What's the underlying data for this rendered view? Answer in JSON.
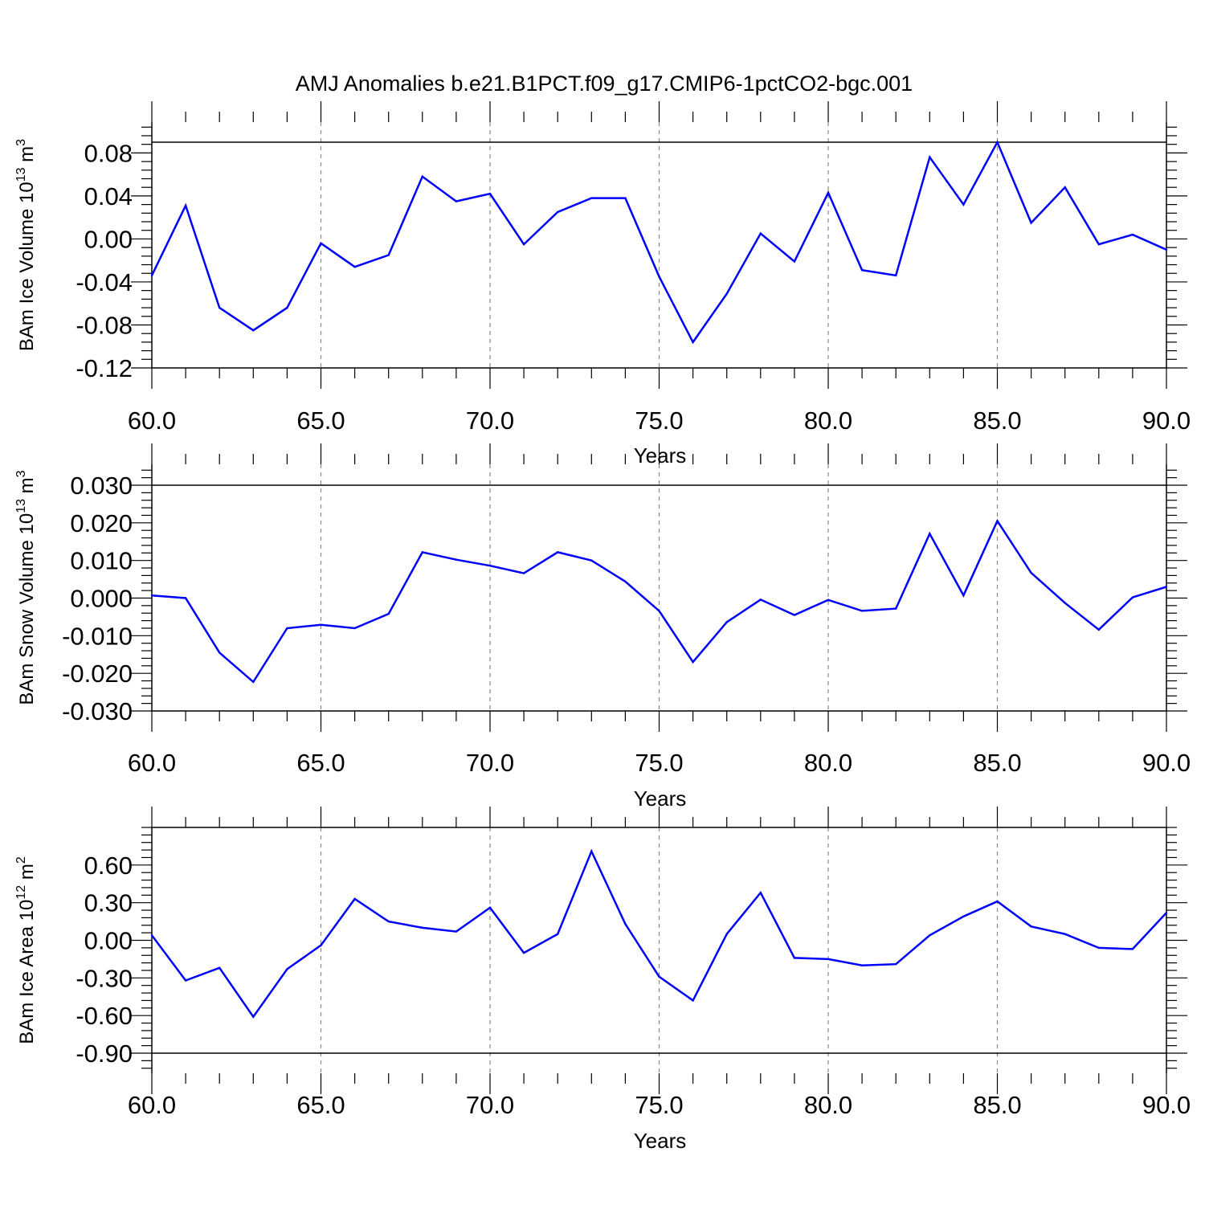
{
  "title": "AMJ Anomalies b.e21.B1PCT.f09_g17.CMIP6-1pctCO2-bgc.001",
  "colors": {
    "line": "#0000ff",
    "axes": "#000000",
    "grid": "#888888"
  },
  "chart_data": [
    {
      "type": "line",
      "ylabel": "BAm Ice Volume 10",
      "ylabel_sup": "13",
      "ylabel_unit": "m",
      "ylabel_unit_sup": "3",
      "xlabel": "Years",
      "xlim": [
        60,
        90
      ],
      "ylim": [
        -0.12,
        0.09
      ],
      "x_ticks": [
        "60.0",
        "65.0",
        "70.0",
        "75.0",
        "80.0",
        "85.0",
        "90.0"
      ],
      "y_ticks": [
        {
          "v": 0.08,
          "l": "0.08"
        },
        {
          "v": 0.04,
          "l": "0.04"
        },
        {
          "v": 0.0,
          "l": "0.00"
        },
        {
          "v": -0.04,
          "l": "-0.04"
        },
        {
          "v": -0.08,
          "l": "-0.08"
        },
        {
          "v": -0.12,
          "l": "-0.12"
        }
      ],
      "x": [
        60,
        61,
        62,
        63,
        64,
        65,
        66,
        67,
        68,
        69,
        70,
        71,
        72,
        73,
        74,
        75,
        76,
        77,
        78,
        79,
        80,
        81,
        82,
        83,
        84,
        85,
        86,
        87,
        88,
        89,
        90
      ],
      "y": [
        -0.034,
        0.031,
        -0.064,
        -0.085,
        -0.064,
        -0.004,
        -0.026,
        -0.015,
        0.058,
        0.035,
        0.042,
        -0.005,
        0.025,
        0.038,
        0.038,
        -0.035,
        -0.096,
        -0.051,
        0.005,
        -0.021,
        0.043,
        -0.029,
        -0.034,
        0.076,
        0.032,
        0.09,
        0.015,
        0.048,
        -0.005,
        0.004,
        -0.01
      ]
    },
    {
      "type": "line",
      "ylabel": "BAm Snow Volume 10",
      "ylabel_sup": "13",
      "ylabel_unit": "m",
      "ylabel_unit_sup": "3",
      "xlabel": "Years",
      "xlim": [
        60,
        90
      ],
      "ylim": [
        -0.03,
        0.03
      ],
      "x_ticks": [
        "60.0",
        "65.0",
        "70.0",
        "75.0",
        "80.0",
        "85.0",
        "90.0"
      ],
      "y_ticks": [
        {
          "v": 0.03,
          "l": "0.030"
        },
        {
          "v": 0.02,
          "l": "0.020"
        },
        {
          "v": 0.01,
          "l": "0.010"
        },
        {
          "v": 0.0,
          "l": "0.000"
        },
        {
          "v": -0.01,
          "l": "-0.010"
        },
        {
          "v": -0.02,
          "l": "-0.020"
        },
        {
          "v": -0.03,
          "l": "-0.030"
        }
      ],
      "x": [
        60,
        61,
        62,
        63,
        64,
        65,
        66,
        67,
        68,
        69,
        70,
        71,
        72,
        73,
        74,
        75,
        76,
        77,
        78,
        79,
        80,
        81,
        82,
        83,
        84,
        85,
        86,
        87,
        88,
        89,
        90
      ],
      "y": [
        0.0007,
        0.0,
        -0.0145,
        -0.0223,
        -0.008,
        -0.0071,
        -0.008,
        -0.0042,
        0.0122,
        0.0102,
        0.0086,
        0.0066,
        0.0122,
        0.01,
        0.0044,
        -0.0034,
        -0.017,
        -0.0064,
        -0.0004,
        -0.0045,
        -0.0005,
        -0.0034,
        -0.0028,
        0.0171,
        0.0007,
        0.0205,
        0.0067,
        -0.0013,
        -0.0084,
        0.0002,
        0.003
      ]
    },
    {
      "type": "line",
      "ylabel": "BAm Ice Area 10",
      "ylabel_sup": "12",
      "ylabel_unit": "m",
      "ylabel_unit_sup": "2",
      "xlabel": "Years",
      "xlim": [
        60,
        90
      ],
      "ylim": [
        -0.9,
        0.9
      ],
      "x_ticks": [
        "60.0",
        "65.0",
        "70.0",
        "75.0",
        "80.0",
        "85.0",
        "90.0"
      ],
      "y_ticks": [
        {
          "v": 0.6,
          "l": "0.60"
        },
        {
          "v": 0.3,
          "l": "0.30"
        },
        {
          "v": 0.0,
          "l": "0.00"
        },
        {
          "v": -0.3,
          "l": "-0.30"
        },
        {
          "v": -0.6,
          "l": "-0.60"
        },
        {
          "v": -0.9,
          "l": "-0.90"
        }
      ],
      "x": [
        60,
        61,
        62,
        63,
        64,
        65,
        66,
        67,
        68,
        69,
        70,
        71,
        72,
        73,
        74,
        75,
        76,
        77,
        78,
        79,
        80,
        81,
        82,
        83,
        84,
        85,
        86,
        87,
        88,
        89,
        90
      ],
      "y": [
        0.04,
        -0.32,
        -0.22,
        -0.61,
        -0.23,
        -0.04,
        0.33,
        0.15,
        0.1,
        0.07,
        0.26,
        -0.1,
        0.05,
        0.71,
        0.13,
        -0.29,
        -0.48,
        0.05,
        0.38,
        -0.14,
        -0.15,
        -0.2,
        -0.19,
        0.04,
        0.19,
        0.31,
        0.11,
        0.05,
        -0.06,
        -0.07,
        0.22
      ]
    }
  ]
}
